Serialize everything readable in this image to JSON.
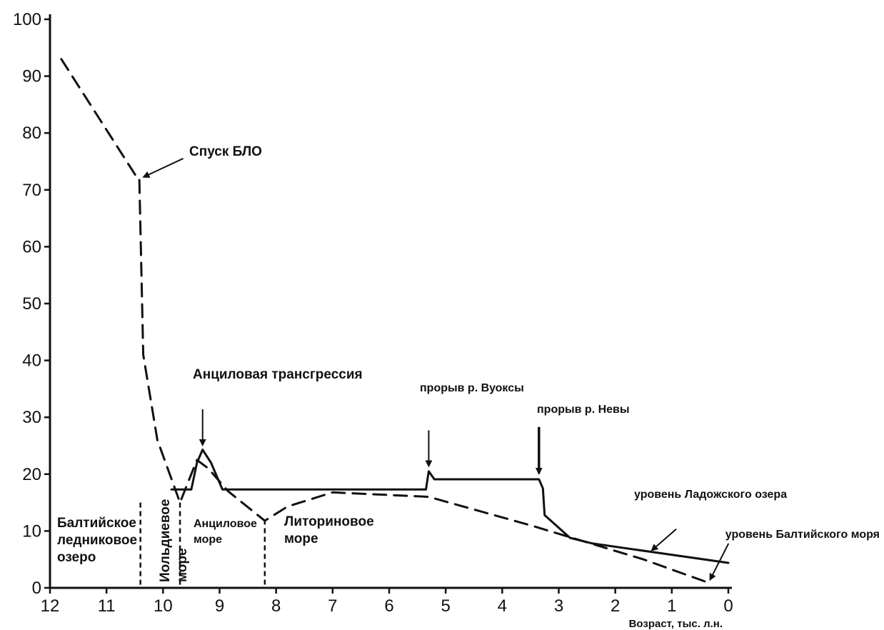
{
  "chart_data": {
    "type": "line",
    "title": "",
    "xlabel": "Возраст, тыс. л.н.",
    "ylabel": "",
    "xlim": [
      12,
      0
    ],
    "ylim": [
      0,
      100
    ],
    "x_ticks": [
      12,
      11,
      10,
      9,
      8,
      7,
      6,
      5,
      4,
      3,
      2,
      1,
      0
    ],
    "y_ticks": [
      0,
      10,
      20,
      30,
      40,
      50,
      60,
      70,
      80,
      90,
      100
    ],
    "grid": false,
    "series": [
      {
        "name": "уровень Балтийского моря",
        "style": "dashed",
        "points": [
          [
            11.8,
            93
          ],
          [
            10.45,
            72
          ],
          [
            10.42,
            72
          ],
          [
            10.35,
            41
          ],
          [
            10.1,
            26
          ],
          [
            9.7,
            15
          ],
          [
            9.4,
            22.5
          ],
          [
            9.2,
            21
          ],
          [
            8.85,
            17
          ],
          [
            8.2,
            11.8
          ],
          [
            7.8,
            14.3
          ],
          [
            7.0,
            16.8
          ],
          [
            5.3,
            16
          ],
          [
            3.5,
            11
          ],
          [
            2.5,
            8
          ],
          [
            1.5,
            5
          ],
          [
            0.8,
            2.5
          ],
          [
            0.35,
            0.9
          ]
        ]
      },
      {
        "name": "уровень Ладожского озера",
        "style": "solid",
        "points": [
          [
            9.85,
            17.3
          ],
          [
            9.5,
            17.3
          ],
          [
            9.4,
            22
          ],
          [
            9.3,
            24.3
          ],
          [
            9.15,
            22
          ],
          [
            8.95,
            17.3
          ],
          [
            5.35,
            17.3
          ],
          [
            5.3,
            20.5
          ],
          [
            5.2,
            19.1
          ],
          [
            3.35,
            19.1
          ],
          [
            3.28,
            17.5
          ],
          [
            3.25,
            12.8
          ],
          [
            2.8,
            8.8
          ],
          [
            2.4,
            7.8
          ],
          [
            0.0,
            4.4
          ]
        ]
      }
    ],
    "period_boundaries": [
      {
        "x": 10.4,
        "y_top": 15
      },
      {
        "x": 9.7,
        "y_top": 15
      },
      {
        "x": 8.2,
        "y_top": 12
      }
    ],
    "annotations": [
      {
        "text": "Спуск БЛО",
        "x": 10.4,
        "y": 72
      },
      {
        "text": "Анциловая трансгрессия",
        "x": 9.3,
        "y": 24.5
      },
      {
        "text": "прорыв р. Вуоксы",
        "x": 5.3,
        "y": 20.8
      },
      {
        "text": "прорыв р. Невы",
        "x": 3.35,
        "y": 19.5
      },
      {
        "text": "уровень Ладожского озера",
        "x": 1.4,
        "y": 6.2
      },
      {
        "text": "уровень Балтийского моря",
        "x": 0.35,
        "y": 0.9
      }
    ],
    "period_labels": [
      {
        "lines": [
          "Балтийское",
          "ледниковое",
          "озеро"
        ]
      },
      {
        "lines": [
          "Иольдиевое",
          "море"
        ]
      },
      {
        "lines": [
          "Анциловое",
          "море"
        ]
      },
      {
        "lines": [
          "Литориновое",
          "море"
        ]
      }
    ]
  }
}
